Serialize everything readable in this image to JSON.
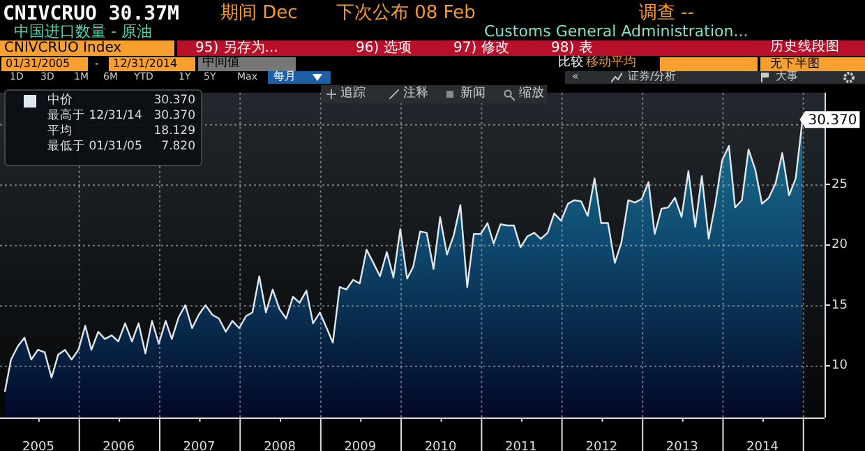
{
  "chart_data": {
    "type": "area",
    "title": "CNIVCRUO 30.37M",
    "subtitle": "中国进口数量 - 原油",
    "x": [
      "2005-01-31",
      "2005-02-28",
      "2005-03-31",
      "2005-04-30",
      "2005-05-31",
      "2005-06-30",
      "2005-07-31",
      "2005-08-31",
      "2005-09-30",
      "2005-10-31",
      "2005-11-30",
      "2005-12-31",
      "2006-01-31",
      "2006-02-28",
      "2006-03-31",
      "2006-04-30",
      "2006-05-31",
      "2006-06-30",
      "2006-07-31",
      "2006-08-31",
      "2006-09-30",
      "2006-10-31",
      "2006-11-30",
      "2006-12-31",
      "2007-01-31",
      "2007-02-28",
      "2007-03-31",
      "2007-04-30",
      "2007-05-31",
      "2007-06-30",
      "2007-07-31",
      "2007-08-31",
      "2007-09-30",
      "2007-10-31",
      "2007-11-30",
      "2007-12-31",
      "2008-01-31",
      "2008-02-29",
      "2008-03-31",
      "2008-04-30",
      "2008-05-31",
      "2008-06-30",
      "2008-07-31",
      "2008-08-31",
      "2008-09-30",
      "2008-10-31",
      "2008-11-30",
      "2008-12-31",
      "2009-01-31",
      "2009-02-28",
      "2009-03-31",
      "2009-04-30",
      "2009-05-31",
      "2009-06-30",
      "2009-07-31",
      "2009-08-31",
      "2009-09-30",
      "2009-10-31",
      "2009-11-30",
      "2009-12-31",
      "2010-01-31",
      "2010-02-28",
      "2010-03-31",
      "2010-04-30",
      "2010-05-31",
      "2010-06-30",
      "2010-07-31",
      "2010-08-31",
      "2010-09-30",
      "2010-10-31",
      "2010-11-30",
      "2010-12-31",
      "2011-01-31",
      "2011-02-28",
      "2011-03-31",
      "2011-04-30",
      "2011-05-31",
      "2011-06-30",
      "2011-07-31",
      "2011-08-31",
      "2011-09-30",
      "2011-10-31",
      "2011-11-30",
      "2011-12-31",
      "2012-01-31",
      "2012-02-29",
      "2012-03-31",
      "2012-04-30",
      "2012-05-31",
      "2012-06-30",
      "2012-07-31",
      "2012-08-31",
      "2012-09-30",
      "2012-10-31",
      "2012-11-30",
      "2012-12-31",
      "2013-01-31",
      "2013-02-28",
      "2013-03-31",
      "2013-04-30",
      "2013-05-31",
      "2013-06-30",
      "2013-07-31",
      "2013-08-31",
      "2013-09-30",
      "2013-10-31",
      "2013-11-30",
      "2013-12-31",
      "2014-01-31",
      "2014-02-28",
      "2014-03-31",
      "2014-04-30",
      "2014-05-31",
      "2014-06-30",
      "2014-07-31",
      "2014-08-31",
      "2014-09-30",
      "2014-10-31",
      "2014-11-30",
      "2014-12-31"
    ],
    "series": [
      {
        "name": "中价",
        "color": "#dfe8ee",
        "values": [
          7.82,
          10.5,
          11.6,
          12.3,
          10.5,
          11.3,
          11.1,
          9.0,
          10.9,
          11.3,
          10.5,
          11.3,
          13.3,
          11.3,
          12.8,
          12.2,
          12.5,
          12.0,
          13.5,
          12.0,
          13.5,
          11.0,
          13.7,
          11.8,
          13.7,
          12.2,
          14.0,
          15.0,
          13.1,
          14.2,
          15.0,
          14.2,
          13.9,
          12.8,
          13.7,
          13.1,
          14.1,
          14.4,
          17.4,
          14.4,
          16.3,
          14.7,
          13.9,
          15.7,
          15.2,
          16.2,
          13.5,
          14.4,
          13.1,
          11.9,
          16.5,
          16.3,
          17.1,
          16.8,
          19.6,
          18.5,
          17.4,
          19.4,
          17.3,
          21.3,
          17.2,
          18.2,
          21.1,
          21.0,
          18.0,
          22.3,
          19.2,
          20.8,
          23.3,
          16.5,
          20.9,
          20.9,
          21.8,
          20.1,
          21.7,
          21.6,
          21.6,
          19.8,
          20.7,
          21.0,
          20.5,
          21.0,
          22.6,
          22.0,
          23.4,
          23.7,
          23.6,
          22.4,
          25.5,
          21.8,
          21.8,
          18.5,
          20.2,
          23.7,
          23.5,
          23.8,
          25.2,
          20.9,
          23.0,
          23.1,
          23.9,
          22.3,
          26.1,
          21.5,
          25.7,
          20.5,
          23.4,
          27.0,
          28.2,
          23.1,
          23.7,
          27.9,
          26.2,
          23.4,
          23.9,
          25.1,
          27.6,
          24.1,
          25.5,
          30.37
        ]
      }
    ],
    "xlim": [
      "2005-01-09",
      "2015-04-10"
    ],
    "xticks": [
      {
        "value": "2005-07-02",
        "label": "2005"
      },
      {
        "value": "2006-01-01",
        "label": null
      },
      {
        "value": "2006-07-02",
        "label": "2006"
      },
      {
        "value": "2007-01-01",
        "label": null
      },
      {
        "value": "2007-07-02",
        "label": "2007"
      },
      {
        "value": "2008-01-01",
        "label": null
      },
      {
        "value": "2008-07-02",
        "label": "2008"
      },
      {
        "value": "2009-01-01",
        "label": null
      },
      {
        "value": "2009-07-02",
        "label": "2009"
      },
      {
        "value": "2010-01-01",
        "label": null
      },
      {
        "value": "2010-07-02",
        "label": "2010"
      },
      {
        "value": "2011-01-01",
        "label": null
      },
      {
        "value": "2011-07-02",
        "label": "2011"
      },
      {
        "value": "2012-01-01",
        "label": null
      },
      {
        "value": "2012-07-02",
        "label": "2012"
      },
      {
        "value": "2013-01-01",
        "label": null
      },
      {
        "value": "2013-07-02",
        "label": "2013"
      },
      {
        "value": "2014-01-01",
        "label": null
      },
      {
        "value": "2014-07-02",
        "label": "2014"
      },
      {
        "value": "2015-01-01",
        "label": null
      }
    ],
    "ylim": [
      5.7,
      32.6
    ],
    "yticks": [
      10,
      15,
      20,
      25,
      {
        "value": 30,
        "label": null
      }
    ],
    "grid": true,
    "legend": "top left",
    "annotations": [
      "期间 Dec",
      "下次公布 08 Feb",
      "调查 --",
      "Customs General Administration...",
      "CNIVCRUO Index",
      "95) 另存为...",
      "96) 选项",
      "97) 修改",
      "98) 表",
      "历史线段图",
      "01/31/2005",
      "-",
      "12/31/2014",
      "中间值",
      "比较",
      "移动平均",
      "无下半图",
      "1D",
      "3D",
      "1M",
      "6M",
      "YTD",
      "1Y",
      "5Y",
      "Max",
      "每月",
      "«",
      "证券/分析",
      "大事",
      "追踪",
      "注释",
      "新闻",
      "缩放",
      "30.370",
      "最高于 12/31/14",
      "30.370",
      "平均",
      "18.129",
      "最低于 01/31/05",
      "7.820",
      {
        "text": "30.370",
        "x": "2014-12-31",
        "y": 30.37
      }
    ]
  }
}
